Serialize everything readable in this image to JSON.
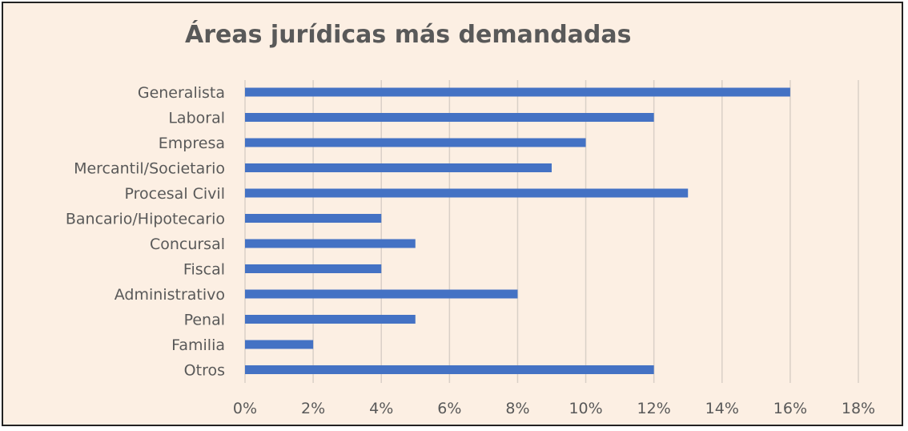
{
  "chart_data": {
    "type": "bar",
    "orientation": "horizontal",
    "title": "Áreas jurídicas más demandadas",
    "categories": [
      "Generalista",
      "Laboral",
      "Empresa",
      "Mercantil/Societario",
      "Procesal Civil",
      "Bancario/Hipotecario",
      "Concursal",
      "Fiscal",
      "Administrativo",
      "Penal",
      "Familia",
      "Otros"
    ],
    "values": [
      16,
      12,
      10,
      9,
      13,
      4,
      5,
      4,
      8,
      5,
      2,
      12
    ],
    "xlim": [
      0,
      18
    ],
    "xticks": [
      "0%",
      "2%",
      "4%",
      "6%",
      "8%",
      "10%",
      "12%",
      "14%",
      "16%",
      "18%"
    ],
    "unit": "%",
    "grid": "vertical",
    "legend": "none",
    "colors": {
      "bar": "#4472c4",
      "background": "#fcefe3",
      "grid": "#d9d0c7",
      "text": "#595959",
      "border": "#222222"
    }
  }
}
